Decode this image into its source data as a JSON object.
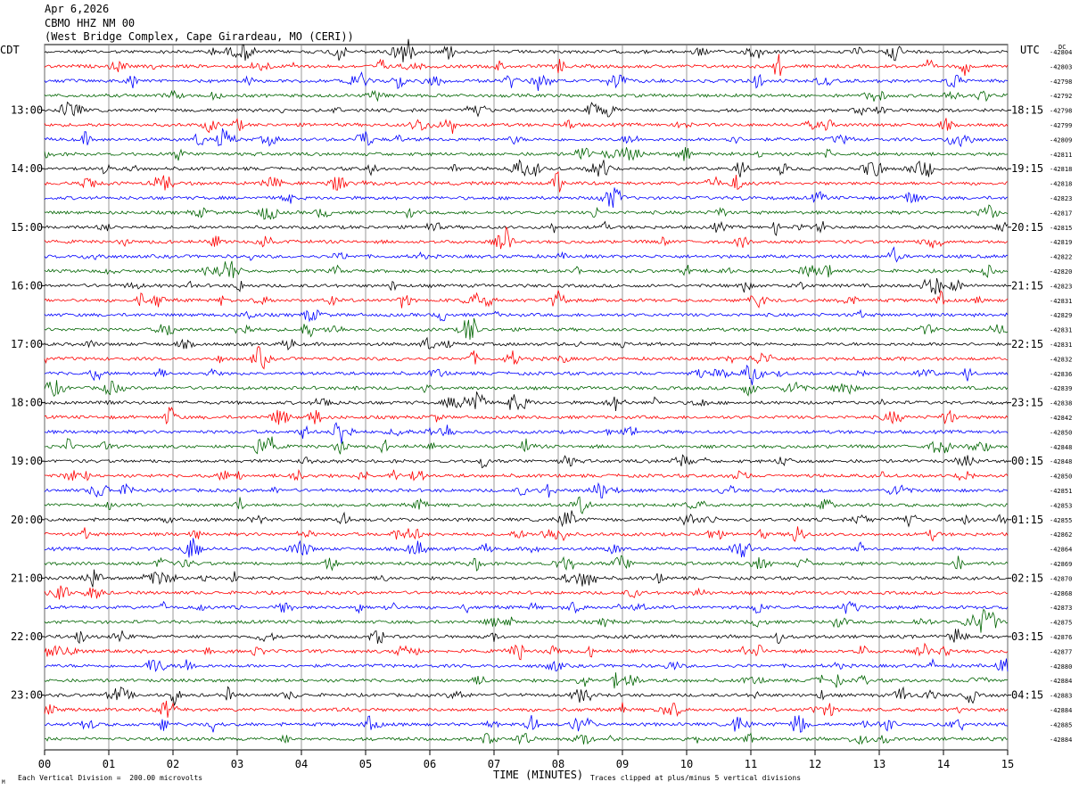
{
  "header": {
    "date": "Apr 6,2026",
    "station": "CBMO HHZ NM 00",
    "location": "(West Bridge Complex, Cape Girardeau, MO (CERI))"
  },
  "footer": {
    "scale_note": "Each Vertical Division =  200.00 microvolts",
    "clip_note": "Traces clipped at plus/minus 5 vertical divisions",
    "corner_mark": "M"
  },
  "chart_data": {
    "type": "line",
    "title": "",
    "xlabel": "TIME (MINUTES)",
    "left_axis_label": "CDT",
    "right_axis_label": "UTC",
    "dc_label": "DC",
    "xlim": [
      0,
      15
    ],
    "x_ticks": [
      "00",
      "01",
      "02",
      "03",
      "04",
      "05",
      "06",
      "07",
      "08",
      "09",
      "10",
      "11",
      "12",
      "13",
      "14",
      "15"
    ],
    "grid": true,
    "trace_colors": [
      "#000000",
      "#ff0000",
      "#0000ff",
      "#006400"
    ],
    "trace_count": 48,
    "left_hour_labels": [
      "13:00",
      "14:00",
      "15:00",
      "16:00",
      "17:00",
      "18:00",
      "19:00",
      "20:00",
      "21:00",
      "22:00",
      "23:00"
    ],
    "right_hour_labels": [
      "18:15",
      "19:15",
      "20:15",
      "21:15",
      "22:15",
      "23:15",
      "00:15",
      "01:15",
      "02:15",
      "03:15",
      "04:15"
    ],
    "dc_offsets": [
      "-42804",
      "-42803",
      "-42798",
      "-42792",
      "-42798",
      "-42799",
      "-42809",
      "-42811",
      "-42818",
      "-42818",
      "-42823",
      "-42817",
      "-42815",
      "-42819",
      "-42822",
      "-42820",
      "-42823",
      "-42831",
      "-42829",
      "-42831",
      "-42831",
      "-42832",
      "-42836",
      "-42839",
      "-42838",
      "-42842",
      "-42850",
      "-42848",
      "-42848",
      "-42850",
      "-42851",
      "-42853",
      "-42855",
      "-42862",
      "-42864",
      "-42869",
      "-42870",
      "-42868",
      "-42873",
      "-42875",
      "-42876",
      "-42877",
      "-42880",
      "-42884",
      "-42883",
      "-42884",
      "-42885",
      "-42884"
    ]
  }
}
